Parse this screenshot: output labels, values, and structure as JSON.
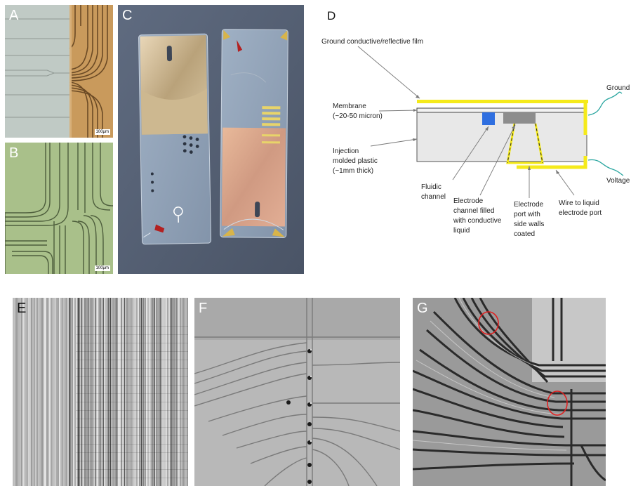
{
  "panels": {
    "a": {
      "label": "A",
      "scale": "100μm"
    },
    "b": {
      "label": "B",
      "scale": "100μm"
    },
    "c": {
      "label": "C"
    },
    "d": {
      "label": "D",
      "annotations": {
        "ground_film": "Ground conductive/reflective film",
        "membrane_line1": "Membrane",
        "membrane_line2": "(~20-50 micron)",
        "injection_line1": "Injection",
        "injection_line2": "molded plastic",
        "injection_line3": "(~1mm thick)",
        "ground": "Ground",
        "voltage": "Voltage",
        "fluidic_line1": "Fluidic",
        "fluidic_line2": "channel",
        "electrode_channel_line1": "Electrode",
        "electrode_channel_line2": "channel filled",
        "electrode_channel_line3": "with conductive",
        "electrode_channel_line4": "liquid",
        "electrode_port_line1": "Electrode",
        "electrode_port_line2": "port with",
        "electrode_port_line3": "side walls",
        "electrode_port_line4": "coated",
        "wire_line1": "Wire to liquid",
        "wire_line2": "electrode port"
      }
    },
    "e": {
      "label": "E"
    },
    "f": {
      "label": "F"
    },
    "g": {
      "label": "G"
    }
  },
  "colors": {
    "film_yellow": "#f5ea1a",
    "fluidic_blue": "#2f6fe0",
    "electrode_gray": "#8d8d8d",
    "wire_teal": "#2aa6a0",
    "highlight_red": "#e02020",
    "copper": "#d9a574",
    "microscope_green": "#a9c08a"
  }
}
